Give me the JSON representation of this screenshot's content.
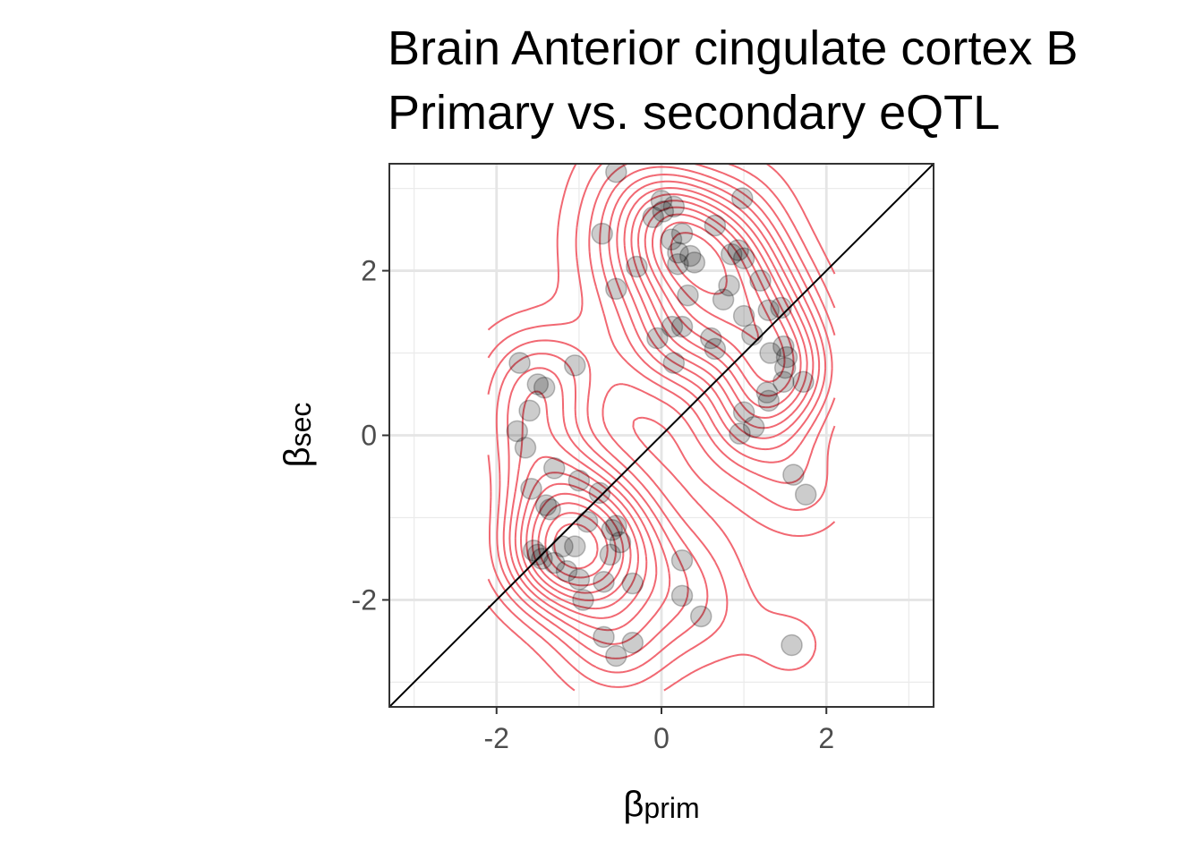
{
  "chart_data": {
    "type": "scatter",
    "title_lines": [
      "Brain Anterior cingulate cortex B",
      "Primary vs. secondary eQTL"
    ],
    "xlabel": {
      "symbol": "β",
      "subscript": "prim"
    },
    "ylabel": {
      "symbol": "β",
      "subscript": "sec"
    },
    "xlim": [
      -3.3,
      3.3
    ],
    "ylim": [
      -3.3,
      3.3
    ],
    "xticks": [
      -2,
      0,
      2
    ],
    "yticks": [
      -2,
      0,
      2
    ],
    "xtick_labels": [
      "-2",
      "0",
      "2"
    ],
    "ytick_labels": [
      "-2",
      "0",
      "2"
    ],
    "grid": true,
    "reference_line": "y = x",
    "contour_color": "#f0606a",
    "point_color": "#000000",
    "point_opacity": 0.2,
    "x": [
      -0.55,
      -0.72,
      -0.55,
      -0.3,
      0.0,
      0.02,
      -0.1,
      0.15,
      0.12,
      0.2,
      0.25,
      0.35,
      0.2,
      0.4,
      0.13,
      0.32,
      0.65,
      0.85,
      0.93,
      1.0,
      0.82,
      0.75,
      0.98,
      0.6,
      0.65,
      0.25,
      -0.05,
      0.15,
      1.0,
      1.1,
      1.2,
      1.3,
      1.45,
      1.48,
      1.52,
      1.5,
      1.48,
      1.32,
      1.3,
      1.28,
      1.0,
      1.12,
      0.95,
      1.72,
      1.6,
      1.75,
      -1.72,
      -1.5,
      -1.42,
      -1.05,
      -1.6,
      -1.75,
      -1.65,
      -1.58,
      -1.4,
      -1.35,
      -1.3,
      -1.2,
      -1.45,
      -1.5,
      -1.0,
      -0.75,
      -0.55,
      -0.6,
      -0.5,
      -0.62,
      -0.9,
      -1.05,
      -1.15,
      -1.3,
      -1.55,
      -1.0,
      -0.7,
      -0.35,
      -0.95,
      -0.7,
      -0.55,
      -0.35,
      0.25,
      0.25,
      0.48,
      1.58
    ],
    "y": [
      3.2,
      2.45,
      1.78,
      2.05,
      2.85,
      2.72,
      2.65,
      2.78,
      2.38,
      2.22,
      2.45,
      2.18,
      2.08,
      2.1,
      1.32,
      1.7,
      2.55,
      2.2,
      2.25,
      2.15,
      1.82,
      1.65,
      2.88,
      1.18,
      1.05,
      1.32,
      1.18,
      0.88,
      1.45,
      1.22,
      1.88,
      1.52,
      1.55,
      1.08,
      0.95,
      0.82,
      0.65,
      1.0,
      0.42,
      0.52,
      0.28,
      0.1,
      0.02,
      0.65,
      -0.48,
      -0.72,
      0.88,
      0.62,
      0.58,
      0.85,
      0.3,
      0.05,
      -0.15,
      -0.65,
      -0.85,
      -0.9,
      -0.4,
      -1.35,
      -1.5,
      -1.45,
      -0.55,
      -0.7,
      -1.1,
      -1.15,
      -1.3,
      -1.45,
      -1.05,
      -1.35,
      -1.65,
      -1.55,
      -1.4,
      -1.75,
      -1.78,
      -1.8,
      -2.0,
      -2.45,
      -2.68,
      -2.52,
      -1.52,
      -1.95,
      -2.2,
      -2.55
    ],
    "contour_centers": [
      [
        0.25,
        2.28
      ],
      [
        1.35,
        0.7
      ],
      [
        -1.2,
        -1.1
      ]
    ]
  }
}
